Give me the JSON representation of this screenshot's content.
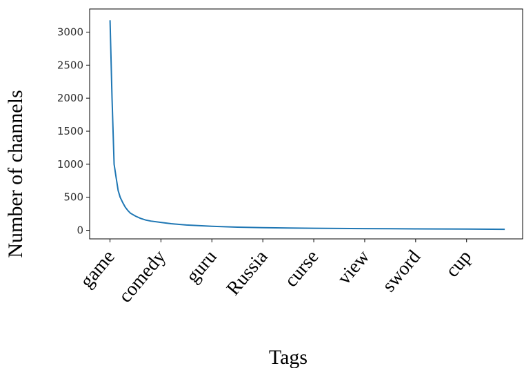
{
  "chart_data": {
    "type": "line",
    "title": "",
    "xlabel": "Tags",
    "ylabel": "Number of channels",
    "ylim": [
      -130,
      3350
    ],
    "yticks": [
      0,
      500,
      1000,
      1500,
      2000,
      2500,
      3000
    ],
    "xticks": [
      "game",
      "comedy",
      "guru",
      "Russia",
      "curse",
      "view",
      "sword",
      "cup"
    ],
    "xtick_positions": [
      0,
      1,
      2,
      3,
      4,
      5,
      6,
      7
    ],
    "xlim": [
      -0.4,
      8.1
    ],
    "grid": false,
    "line_color": "#1f77b4",
    "series": [
      {
        "x": [
          0,
          0.04,
          0.08,
          0.12,
          0.16,
          0.2,
          0.25,
          0.3,
          0.35,
          0.4,
          0.5,
          0.6,
          0.7,
          0.8,
          1.0,
          1.2,
          1.5,
          2.0,
          2.5,
          3.0,
          3.5,
          4.0,
          4.5,
          5.0,
          5.5,
          6.0,
          6.5,
          7.0,
          7.5,
          7.75
        ],
        "values": [
          3180,
          2000,
          1000,
          800,
          600,
          500,
          420,
          350,
          300,
          260,
          215,
          180,
          155,
          140,
          120,
          100,
          80,
          60,
          48,
          40,
          35,
          31,
          28,
          26,
          24,
          22,
          20,
          18,
          16,
          15
        ]
      }
    ]
  }
}
